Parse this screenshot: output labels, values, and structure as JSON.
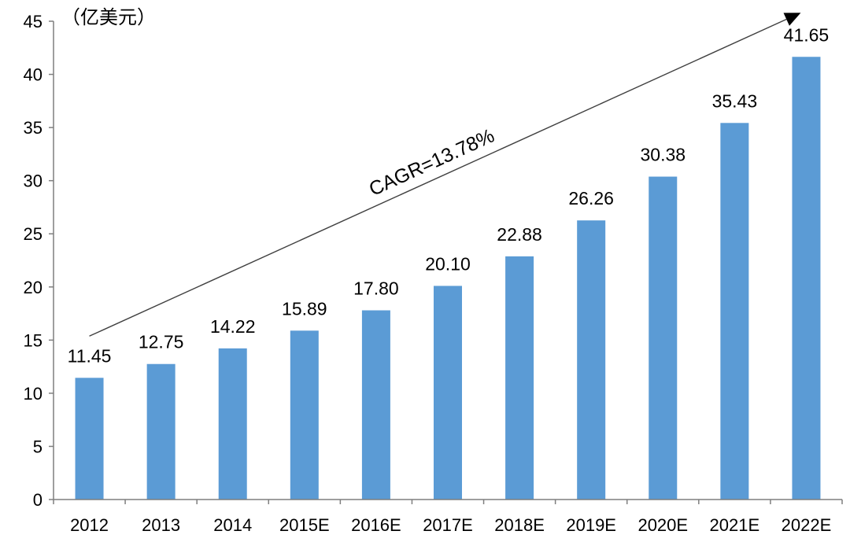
{
  "chart_data": {
    "type": "bar",
    "title": "",
    "unit_label": "（亿美元）",
    "xlabel": "",
    "ylabel": "",
    "ylim": [
      0,
      45
    ],
    "yticks": [
      0,
      5,
      10,
      15,
      20,
      25,
      30,
      35,
      40,
      45
    ],
    "categories": [
      "2012",
      "2013",
      "2014",
      "2015E",
      "2016E",
      "2017E",
      "2018E",
      "2019E",
      "2020E",
      "2021E",
      "2022E"
    ],
    "values": [
      11.45,
      12.75,
      14.22,
      15.89,
      17.8,
      20.1,
      22.88,
      26.26,
      30.38,
      35.43,
      41.65
    ],
    "value_labels": [
      "11.45",
      "12.75",
      "14.22",
      "15.89",
      "17.80",
      "20.10",
      "22.88",
      "26.26",
      "30.38",
      "35.43",
      "41.65"
    ],
    "annotation": "CAGR=13.78%",
    "grid": false,
    "legend": "none",
    "colors": {
      "bar": "#5B9BD5",
      "axis": "#7f7f7f",
      "arrow": "#404040"
    }
  }
}
